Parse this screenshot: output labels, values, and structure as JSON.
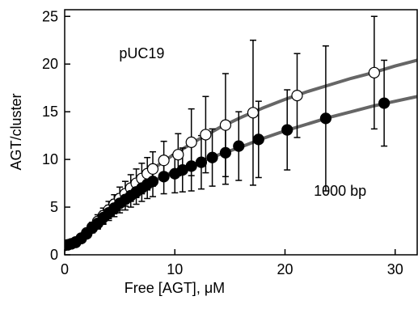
{
  "chart_data": {
    "type": "scatter",
    "xlabel": "Free [AGT], μM",
    "ylabel": "AGT/cluster",
    "xlim": [
      0,
      32
    ],
    "ylim": [
      0,
      25.7
    ],
    "xticks": [
      0,
      10,
      20,
      30
    ],
    "yticks": [
      0,
      5,
      10,
      15,
      20,
      25
    ],
    "annotations": [
      {
        "text": "pUC19",
        "x": 7,
        "y": 20.6
      },
      {
        "text": "1000 bp",
        "x": 25,
        "y": 6.2
      }
    ],
    "series": [
      {
        "marker": "open",
        "color": "#000000",
        "x": [
          0,
          0.3,
          0.6,
          1,
          1.5,
          2,
          2.5,
          3,
          3.5,
          4,
          4.5,
          5,
          5.5,
          6,
          6.5,
          7,
          7.5,
          8,
          9,
          10.3,
          11.5,
          12.8,
          14.6,
          17.1,
          21.1,
          28.1
        ],
        "values": [
          1.0,
          1.05,
          1.15,
          1.35,
          1.75,
          2.3,
          2.9,
          3.5,
          4.1,
          4.7,
          5.3,
          5.9,
          6.4,
          7.0,
          7.5,
          8.0,
          8.5,
          9.0,
          9.9,
          10.5,
          11.8,
          12.6,
          13.6,
          14.9,
          16.7,
          19.1
        ],
        "errors": [
          0.1,
          0.1,
          0.15,
          0.2,
          0.3,
          0.4,
          0.5,
          0.7,
          0.8,
          0.9,
          1.0,
          1.2,
          1.3,
          1.4,
          1.5,
          1.6,
          1.7,
          1.8,
          2.0,
          2.2,
          3.5,
          4.0,
          5.4,
          7.6,
          4.4,
          5.9
        ]
      },
      {
        "marker": "filled",
        "color": "#000000",
        "x": [
          0,
          0.3,
          0.6,
          1,
          1.5,
          2,
          2.5,
          3,
          3.5,
          4,
          4.5,
          5,
          5.5,
          6,
          6.5,
          7,
          7.5,
          8,
          9,
          10,
          10.7,
          11.5,
          12.4,
          13.4,
          14.6,
          15.8,
          17.6,
          20.2,
          23.7,
          29
        ],
        "values": [
          1.0,
          1.05,
          1.15,
          1.3,
          1.7,
          2.2,
          2.8,
          3.3,
          3.9,
          4.4,
          4.9,
          5.4,
          5.8,
          6.2,
          6.6,
          7.0,
          7.4,
          7.7,
          8.2,
          8.5,
          8.9,
          9.3,
          9.7,
          10.2,
          10.7,
          11.4,
          12.1,
          13.1,
          14.3,
          15.9
        ],
        "errors": [
          0.1,
          0.1,
          0.15,
          0.2,
          0.3,
          0.4,
          0.5,
          0.6,
          0.7,
          0.8,
          0.9,
          1.0,
          1.1,
          1.2,
          1.3,
          1.4,
          1.5,
          1.6,
          1.8,
          2.0,
          2.3,
          2.6,
          2.8,
          3.0,
          3.3,
          3.6,
          4.0,
          4.2,
          7.6,
          4.5
        ]
      }
    ],
    "curves": [
      {
        "color": "#666666",
        "x": [
          0,
          2,
          4,
          6,
          8,
          10,
          12,
          14,
          16,
          18,
          20,
          22,
          24,
          26,
          28,
          30,
          32
        ],
        "values": [
          1,
          2.3,
          4.7,
          7,
          9,
          10.6,
          12,
          13.3,
          14.4,
          15.4,
          16.3,
          17.1,
          17.8,
          18.5,
          19.1,
          19.8,
          20.4
        ]
      },
      {
        "color": "#666666",
        "x": [
          0,
          2,
          4,
          6,
          8,
          10,
          12,
          14,
          16,
          18,
          20,
          22,
          24,
          26,
          28,
          30,
          32
        ],
        "values": [
          1,
          2.2,
          4.4,
          6.2,
          7.7,
          8.8,
          9.6,
          10.5,
          11.3,
          12.2,
          13,
          13.7,
          14.4,
          15,
          15.6,
          16.1,
          16.6
        ]
      }
    ]
  }
}
